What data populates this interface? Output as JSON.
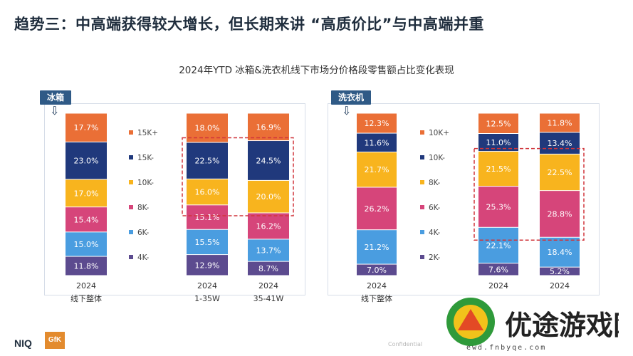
{
  "heading": "趋势三：中高端获得较大增长，但长期来讲 “高质价比”与中高端并重",
  "chart_data": [
    {
      "type": "bar",
      "stacked": true,
      "tag": "冰箱",
      "title": "2024年YTD 冰箱&洗衣机线下市场分价格段零售额占比变化表现",
      "unit": "%",
      "categories": [
        {
          "year": "2024",
          "label": "线下整体"
        },
        {
          "year": "2024",
          "label": "1-35W"
        },
        {
          "year": "2024",
          "label": "35-41W"
        }
      ],
      "series": [
        {
          "name": "4K-",
          "color": "#5c4b8f",
          "values": [
            11.8,
            12.9,
            8.7
          ]
        },
        {
          "name": "6K-",
          "color": "#4a9de0",
          "values": [
            15.0,
            15.5,
            13.7
          ]
        },
        {
          "name": "8K-",
          "color": "#d6457a",
          "values": [
            15.4,
            15.1,
            16.2
          ]
        },
        {
          "name": "10K-",
          "color": "#f8b41e",
          "values": [
            17.0,
            16.0,
            20.0
          ]
        },
        {
          "name": "15K-",
          "color": "#20397c",
          "values": [
            23.0,
            22.5,
            24.5
          ]
        },
        {
          "name": "15K+",
          "color": "#ea6f36",
          "values": [
            17.7,
            18.0,
            16.9
          ]
        }
      ],
      "highlight_series": [
        "10K-",
        "15K-"
      ],
      "highlight_categories": [
        1,
        2
      ],
      "ylim": [
        0,
        100
      ],
      "grid": false,
      "legend_position": "middle"
    },
    {
      "type": "bar",
      "stacked": true,
      "tag": "洗衣机",
      "unit": "%",
      "categories": [
        {
          "year": "2024",
          "label": "线下整体"
        },
        {
          "year": "2024",
          "label": ""
        },
        {
          "year": "2024",
          "label": ""
        }
      ],
      "series": [
        {
          "name": "2K-",
          "color": "#5c4b8f",
          "values": [
            7.0,
            7.6,
            5.2
          ]
        },
        {
          "name": "4K-",
          "color": "#4a9de0",
          "values": [
            21.2,
            22.1,
            18.4
          ]
        },
        {
          "name": "6K-",
          "color": "#d6457a",
          "values": [
            26.2,
            25.3,
            28.8
          ]
        },
        {
          "name": "8K-",
          "color": "#f8b41e",
          "values": [
            21.7,
            21.5,
            22.5
          ]
        },
        {
          "name": "10K-",
          "color": "#20397c",
          "values": [
            11.6,
            11.0,
            13.4
          ]
        },
        {
          "name": "10K+",
          "color": "#ea6f36",
          "values": [
            12.3,
            12.5,
            11.8
          ]
        }
      ],
      "highlight_series": [
        "6K-",
        "8K-"
      ],
      "highlight_categories": [
        1,
        2
      ],
      "ylim": [
        0,
        100
      ],
      "grid": false,
      "legend_position": "middle"
    }
  ],
  "footer": {
    "logo_left": "NIQ",
    "logo_right": "GfK",
    "note": "Confidential"
  },
  "watermark": {
    "text": "优途游戏网",
    "url": "ewd.fnbyqe.com"
  }
}
